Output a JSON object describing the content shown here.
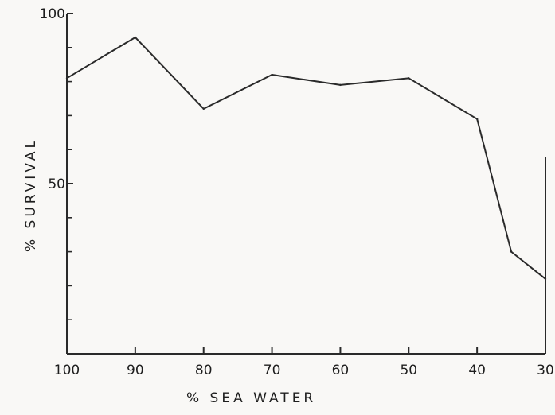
{
  "chart_data": {
    "type": "line",
    "title": "",
    "xlabel": "% SEA WATER",
    "ylabel": "% SURVIVAL",
    "x_axis_reversed": true,
    "xlim": [
      100,
      30
    ],
    "ylim": [
      0,
      100
    ],
    "x_ticks": [
      100,
      90,
      80,
      70,
      60,
      50,
      40,
      30
    ],
    "y_labeled_ticks": [
      50,
      100
    ],
    "y_minor_ticks": [
      10,
      20,
      30,
      40,
      60,
      70,
      80,
      90
    ],
    "grid": false,
    "line_color": "#2a2a2a",
    "series": [
      {
        "x": [
          100,
          90,
          80,
          70,
          60,
          50,
          40,
          35,
          30
        ],
        "values": [
          81,
          93,
          72,
          82,
          79,
          81,
          69,
          30,
          22
        ]
      }
    ]
  }
}
